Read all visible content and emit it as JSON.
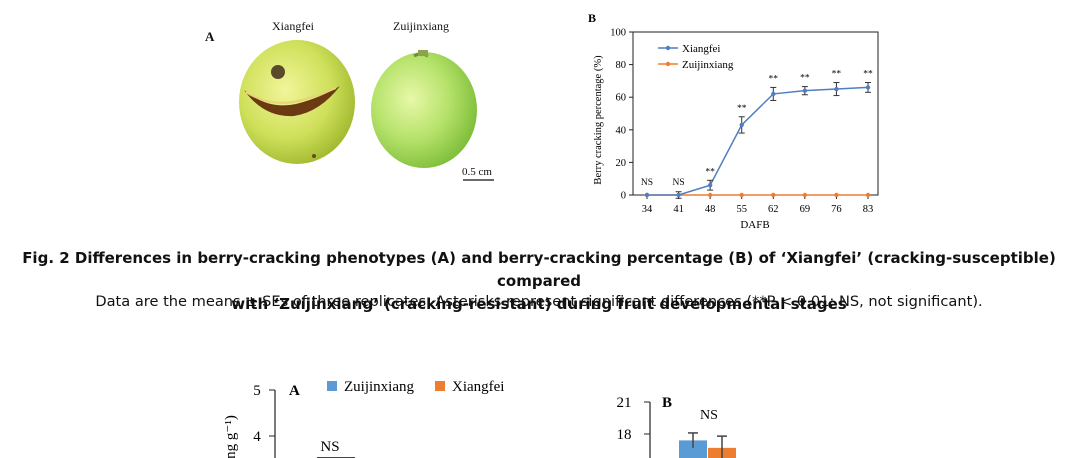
{
  "figure2": {
    "photo": {
      "panel_letter": "A",
      "label_left": "Xiangfei",
      "label_right": "Zuijinxiang",
      "scale_bar": "0.5 cm"
    },
    "caption_title_line1": "Fig. 2  Differences in berry-cracking phenotypes (A) and berry-cracking percentage (B) of ‘Xiangfei’ (cracking-susceptible) compared",
    "caption_title_line2": "with ‘Zuijinxiang’ (cracking-resistant) during fruit developmental stages",
    "caption_note": "Data are the means ± SEs of three replicates. Asterisks represent significant differences (**P < 0.01; NS, not significant)."
  },
  "chart_data": [
    {
      "panel_letter": "B",
      "type": "line",
      "xlabel": "DAFB",
      "ylabel": "Berry cracking percentage (%)",
      "x": [
        34,
        41,
        48,
        55,
        62,
        69,
        76,
        83
      ],
      "ylim": [
        0,
        100
      ],
      "yticks": [
        0,
        20,
        40,
        60,
        80,
        100
      ],
      "legend_position": "top-left",
      "series": [
        {
          "name": "Xiangfei",
          "color": "#4f7fc0",
          "values": [
            0,
            0,
            6,
            43,
            62,
            64,
            65,
            66
          ],
          "errors": [
            0,
            2,
            3,
            5,
            4,
            2.5,
            4,
            3
          ]
        },
        {
          "name": "Zuijinxiang",
          "color": "#ed7d31",
          "values": [
            0,
            0,
            0,
            0,
            0,
            0,
            0,
            0
          ],
          "errors": [
            0,
            0,
            0,
            0,
            0,
            0,
            0,
            0
          ]
        }
      ],
      "annotations": [
        "NS",
        "NS",
        "**",
        "**",
        "**",
        "**",
        "**",
        "**"
      ]
    },
    {
      "panel_letter": "A",
      "type": "bar",
      "ylabel": "ng g⁻¹)",
      "yticks_visible": [
        4,
        5
      ],
      "legend_position": "top",
      "series": [
        {
          "name": "Zuijinxiang",
          "color": "#5b9bd5"
        },
        {
          "name": "Xiangfei",
          "color": "#ed7d31"
        }
      ],
      "annotations": [
        "NS"
      ]
    },
    {
      "panel_letter": "B",
      "type": "bar",
      "yticks_visible": [
        18,
        21
      ],
      "series": [
        {
          "name": "Zuijinxiang",
          "color": "#5b9bd5",
          "values": [
            17.4
          ],
          "errors": [
            0.7
          ]
        },
        {
          "name": "Xiangfei",
          "color": "#ed7d31",
          "values": [
            16.7
          ],
          "errors": [
            1.1
          ]
        }
      ],
      "annotations": [
        "NS"
      ]
    }
  ]
}
